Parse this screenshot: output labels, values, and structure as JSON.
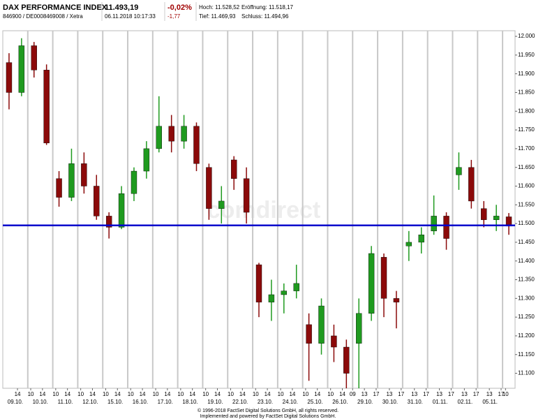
{
  "header": {
    "title": "DAX PERFORMANCE INDEX",
    "identifier": "846900 / DE0008469008 / Xetra",
    "price": "11.493,19",
    "timestamp": "06.11.2018 10:17:33",
    "change_percent": "-0,02%",
    "change": "-1,77",
    "high": "Hoch: 11.528,52",
    "low": "Tief: 11.469,93",
    "open": "Eröffnung: 11.518,17",
    "close": "Schluss: 11.494,96"
  },
  "chart_data": {
    "type": "candlestick",
    "watermark": "comdirect",
    "categories": [
      "09.10.",
      "10.10.",
      "11.10.",
      "12.10.",
      "15.10.",
      "16.10.",
      "17.10.",
      "18.10.",
      "19.10.",
      "22.10.",
      "23.10.",
      "24.10.",
      "25.10.",
      "26.10.",
      "29.10.",
      "30.10.",
      "31.10.",
      "01.11.",
      "02.11.",
      "05.11."
    ],
    "xlim": [
      0,
      20.5
    ],
    "xticks": [
      {
        "value": 0.588,
        "label": "14"
      },
      {
        "value": 1.118,
        "label": "10"
      },
      {
        "value": 1.588,
        "label": "14"
      },
      {
        "value": 2.118,
        "label": "10"
      },
      {
        "value": 2.588,
        "label": "14"
      },
      {
        "value": 3.118,
        "label": "10"
      },
      {
        "value": 3.588,
        "label": "14"
      },
      {
        "value": 4.118,
        "label": "10"
      },
      {
        "value": 4.588,
        "label": "14"
      },
      {
        "value": 5.118,
        "label": "10"
      },
      {
        "value": 5.588,
        "label": "14"
      },
      {
        "value": 6.118,
        "label": "10"
      },
      {
        "value": 6.588,
        "label": "14"
      },
      {
        "value": 7.118,
        "label": "10"
      },
      {
        "value": 7.588,
        "label": "14"
      },
      {
        "value": 8.118,
        "label": "10"
      },
      {
        "value": 8.588,
        "label": "14"
      },
      {
        "value": 9.118,
        "label": "10"
      },
      {
        "value": 9.588,
        "label": "14"
      },
      {
        "value": 10.118,
        "label": "10"
      },
      {
        "value": 10.588,
        "label": "14"
      },
      {
        "value": 11.118,
        "label": "10"
      },
      {
        "value": 11.588,
        "label": "14"
      },
      {
        "value": 12.118,
        "label": "10"
      },
      {
        "value": 12.588,
        "label": "14"
      },
      {
        "value": 13.118,
        "label": "10"
      },
      {
        "value": 13.588,
        "label": "14"
      },
      {
        "value": 14,
        "label": "09"
      },
      {
        "value": 14.471,
        "label": "13"
      },
      {
        "value": 14.941,
        "label": "17"
      },
      {
        "value": 15.471,
        "label": "13"
      },
      {
        "value": 15.941,
        "label": "17"
      },
      {
        "value": 16.471,
        "label": "13"
      },
      {
        "value": 16.941,
        "label": "17"
      },
      {
        "value": 17.471,
        "label": "13"
      },
      {
        "value": 17.941,
        "label": "17"
      },
      {
        "value": 18.471,
        "label": "13"
      },
      {
        "value": 18.941,
        "label": "17"
      },
      {
        "value": 19.471,
        "label": "13"
      },
      {
        "value": 19.941,
        "label": "17"
      },
      {
        "value": 20.118,
        "label": "10"
      }
    ],
    "ylim": [
      11060,
      12015
    ],
    "yticks": [
      {
        "value": 11100,
        "label": "11.100"
      },
      {
        "value": 11150,
        "label": "11.150"
      },
      {
        "value": 11200,
        "label": "11.200"
      },
      {
        "value": 11250,
        "label": "11.250"
      },
      {
        "value": 11300,
        "label": "11.300"
      },
      {
        "value": 11350,
        "label": "11.350"
      },
      {
        "value": 11400,
        "label": "11.400"
      },
      {
        "value": 11450,
        "label": "11.450"
      },
      {
        "value": 11500,
        "label": "11.500"
      },
      {
        "value": 11550,
        "label": "11.550"
      },
      {
        "value": 11600,
        "label": "11.600"
      },
      {
        "value": 11650,
        "label": "11.650"
      },
      {
        "value": 11700,
        "label": "11.700"
      },
      {
        "value": 11750,
        "label": "11.750"
      },
      {
        "value": 11800,
        "label": "11.800"
      },
      {
        "value": 11850,
        "label": "11.850"
      },
      {
        "value": 11900,
        "label": "11.900"
      },
      {
        "value": 11950,
        "label": "11.950"
      },
      {
        "value": 12000,
        "label": "12.000"
      }
    ],
    "up_color": "#1f9a1f",
    "down_color": "#8b0a0a",
    "reference_line": {
      "value": 11495,
      "color": "#0000cc"
    },
    "x": [
      0.25,
      0.75,
      1.25,
      1.75,
      2.25,
      2.75,
      3.25,
      3.75,
      4.25,
      4.75,
      5.25,
      5.75,
      6.25,
      6.75,
      7.25,
      7.75,
      8.25,
      8.75,
      9.25,
      9.75,
      10.25,
      10.75,
      11.25,
      11.75,
      12.25,
      12.75,
      13.25,
      13.75,
      14.25,
      14.75,
      15.25,
      15.75,
      16.25,
      16.75,
      17.25,
      17.75,
      18.25,
      18.75,
      19.25,
      19.75,
      20.25
    ],
    "open": [
      11930,
      11850,
      11975,
      11910,
      11620,
      11570,
      11660,
      11600,
      11520,
      11490,
      11580,
      11640,
      11700,
      11760,
      11720,
      11760,
      11650,
      11540,
      11670,
      11620,
      11390,
      11290,
      11310,
      11320,
      11230,
      11180,
      11200,
      11170,
      11180,
      11260,
      11410,
      11300,
      11440,
      11450,
      11480,
      11520,
      11630,
      11650,
      11540,
      11510,
      11518
    ],
    "high": [
      11955,
      11995,
      11985,
      11925,
      11640,
      11700,
      11690,
      11630,
      11530,
      11600,
      11650,
      11720,
      11840,
      11790,
      11790,
      11770,
      11660,
      11600,
      11680,
      11650,
      11395,
      11350,
      11340,
      11390,
      11260,
      11300,
      11230,
      11190,
      11300,
      11440,
      11420,
      11320,
      11480,
      11490,
      11575,
      11530,
      11690,
      11670,
      11560,
      11550,
      11528
    ],
    "low": [
      11805,
      11840,
      11890,
      11710,
      11545,
      11560,
      11580,
      11510,
      11460,
      11485,
      11560,
      11620,
      11690,
      11690,
      11700,
      11640,
      11510,
      11500,
      11590,
      11500,
      11250,
      11240,
      11260,
      11300,
      11080,
      11150,
      11130,
      11060,
      11060,
      11240,
      11250,
      11220,
      11400,
      11420,
      11470,
      11430,
      11590,
      11540,
      11490,
      11480,
      11470
    ],
    "close": [
      11850,
      11975,
      11910,
      11715,
      11570,
      11660,
      11600,
      11520,
      11490,
      11580,
      11640,
      11700,
      11760,
      11720,
      11760,
      11660,
      11540,
      11560,
      11620,
      11530,
      11290,
      11310,
      11320,
      11340,
      11180,
      11280,
      11170,
      11100,
      11260,
      11420,
      11300,
      11290,
      11450,
      11470,
      11520,
      11460,
      11650,
      11560,
      11510,
      11520,
      11493
    ]
  },
  "footer": {
    "copyright": "© 1996-2018 FactSet Digital Solutions GmbH, all rights reserved.",
    "powered": "Implemented and powered by FactSet Digital Solutions GmbH."
  }
}
